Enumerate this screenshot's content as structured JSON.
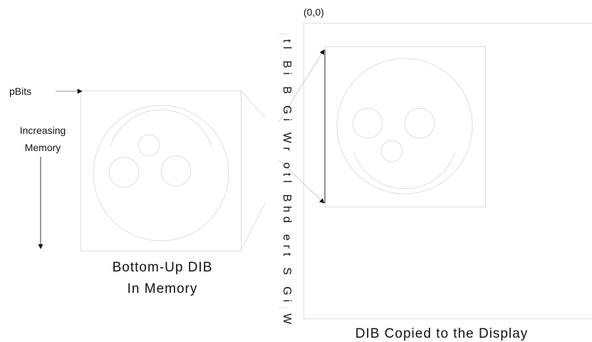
{
  "origin_label": "(0,0)",
  "pointer_label": "pBits",
  "memory_label": [
    "Increasing",
    "Memory"
  ],
  "source_caption": [
    "Bottom-Up DIB",
    "In Memory"
  ],
  "transfer_label": "tl Bi B Gi Wr otl Bhd ert S Gi W",
  "display_caption": "DIB Copied to the Display"
}
